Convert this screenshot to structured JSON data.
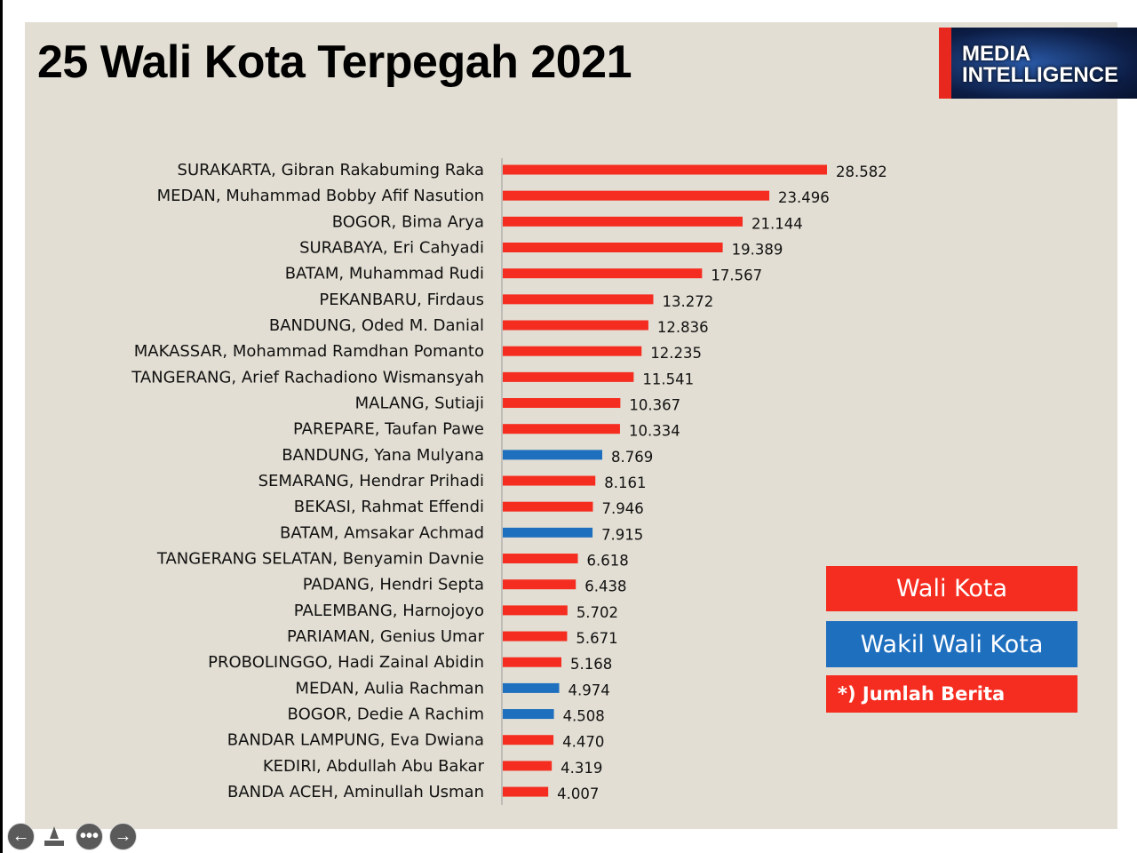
{
  "chart_data": {
    "type": "bar",
    "orientation": "horizontal",
    "title": "25 Wali Kota Terpegah 2021",
    "categories": [
      "SURAKARTA, Gibran Rakabuming Raka",
      "MEDAN, Muhammad Bobby Afif Nasution",
      "BOGOR, Bima Arya",
      "SURABAYA, Eri Cahyadi",
      "BATAM, Muhammad Rudi",
      "PEKANBARU, Firdaus",
      "BANDUNG, Oded M. Danial",
      "MAKASSAR, Mohammad Ramdhan Pomanto",
      "TANGERANG, Arief Rachadiono Wismansyah",
      "MALANG, Sutiaji",
      "PAREPARE, Taufan Pawe",
      "BANDUNG, Yana Mulyana",
      "SEMARANG, Hendrar Prihadi",
      "BEKASI, Rahmat Effendi",
      "BATAM, Amsakar Achmad",
      "TANGERANG SELATAN, Benyamin Davnie",
      "PADANG, Hendri Septa",
      "PALEMBANG, Harnojoyo",
      "PARIAMAN, Genius Umar",
      "PROBOLINGGO, Hadi Zainal Abidin",
      "MEDAN, Aulia Rachman",
      "BOGOR, Dedie A Rachim",
      "BANDAR LAMPUNG, Eva Dwiana",
      "KEDIRI, Abdullah Abu Bakar",
      "BANDA ACEH, Aminullah Usman"
    ],
    "values": [
      28582,
      23496,
      21144,
      19389,
      17567,
      13272,
      12836,
      12235,
      11541,
      10367,
      10334,
      8769,
      8161,
      7946,
      7915,
      6618,
      6438,
      5702,
      5671,
      5168,
      4974,
      4508,
      4470,
      4319,
      4007
    ],
    "value_labels": [
      "28.582",
      "23.496",
      "21.144",
      "19.389",
      "17.567",
      "13.272",
      "12.836",
      "12.235",
      "11.541",
      "10.367",
      "10.334",
      "8.769",
      "8.161",
      "7.946",
      "7.915",
      "6.618",
      "6.438",
      "5.702",
      "5.671",
      "5.168",
      "4.974",
      "4.508",
      "4.470",
      "4.319",
      "4.007"
    ],
    "roles": [
      "wali",
      "wali",
      "wali",
      "wali",
      "wali",
      "wali",
      "wali",
      "wali",
      "wali",
      "wali",
      "wali",
      "wakil",
      "wali",
      "wali",
      "wakil",
      "wali",
      "wali",
      "wali",
      "wali",
      "wali",
      "wakil",
      "wakil",
      "wali",
      "wali",
      "wali"
    ],
    "legend": [
      {
        "key": "wali",
        "name": "Wali Kota",
        "color": "#f52d20"
      },
      {
        "key": "wakil",
        "name": "Wakil Wali Kota",
        "color": "#1f6fbf"
      }
    ],
    "note": "*) Jumlah Berita",
    "legend_position": "bottom-right",
    "grid": false
  },
  "logo": {
    "line1": "MEDIA",
    "line2": "INTELLIGENCE"
  },
  "nav": {
    "prev": "prev-icon",
    "pointer": "pointer-icon",
    "more": "more-icon",
    "next": "next-icon"
  }
}
